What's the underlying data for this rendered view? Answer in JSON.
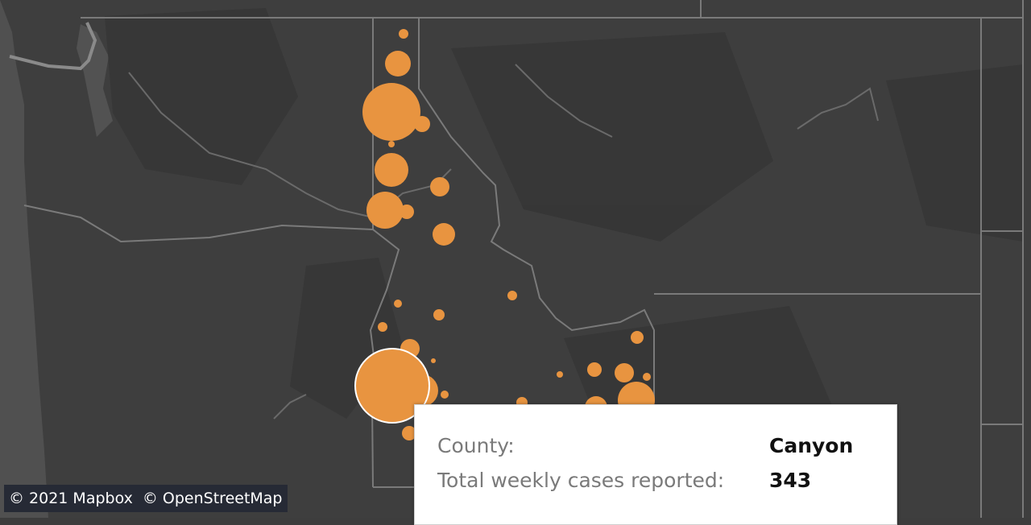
{
  "attribution": {
    "mapbox": "© 2021 Mapbox",
    "osm": "© OpenStreetMap"
  },
  "tooltip": {
    "county_label": "County:",
    "county_value": "Canyon",
    "cases_label": "Total weekly cases reported:",
    "cases_value": "343"
  },
  "colors": {
    "map_background": "#3d3d3d",
    "land_dark": "#353535",
    "water": "#5a5a5a",
    "border": "#7d7d7d",
    "marker": "#e89440",
    "marker_highlight_stroke": "#ffffff"
  },
  "marker_icon": "circle-marker-icon",
  "selected_county": "Canyon"
}
